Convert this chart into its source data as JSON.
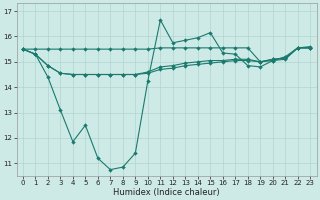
{
  "xlabel": "Humidex (Indice chaleur)",
  "xlim": [
    -0.5,
    23.5
  ],
  "ylim": [
    10.5,
    17.3
  ],
  "yticks": [
    11,
    12,
    13,
    14,
    15,
    16,
    17
  ],
  "xticks": [
    0,
    1,
    2,
    3,
    4,
    5,
    6,
    7,
    8,
    9,
    10,
    11,
    12,
    13,
    14,
    15,
    16,
    17,
    18,
    19,
    20,
    21,
    22,
    23
  ],
  "background_color": "#ceeae6",
  "grid_color": "#b0d4d0",
  "line_color": "#1a7a6e",
  "series": [
    [
      15.5,
      15.3,
      14.4,
      13.1,
      11.85,
      12.5,
      11.2,
      10.75,
      10.85,
      11.4,
      14.25,
      16.65,
      15.75,
      15.85,
      15.95,
      16.15,
      15.35,
      15.3,
      14.85,
      14.8,
      15.05,
      15.2,
      15.55,
      15.55
    ],
    [
      15.5,
      15.3,
      14.85,
      14.55,
      14.5,
      14.5,
      14.5,
      14.5,
      14.5,
      14.5,
      14.55,
      14.7,
      14.75,
      14.85,
      14.9,
      14.95,
      15.0,
      15.05,
      15.05,
      15.0,
      15.05,
      15.1,
      15.55,
      15.55
    ],
    [
      15.5,
      15.5,
      15.5,
      15.5,
      15.5,
      15.5,
      15.5,
      15.5,
      15.5,
      15.5,
      15.5,
      15.55,
      15.55,
      15.55,
      15.55,
      15.55,
      15.55,
      15.55,
      15.55,
      15.0,
      15.1,
      15.15,
      15.55,
      15.6
    ],
    [
      15.5,
      15.3,
      14.85,
      14.55,
      14.5,
      14.5,
      14.5,
      14.5,
      14.5,
      14.5,
      14.6,
      14.8,
      14.85,
      14.95,
      15.0,
      15.05,
      15.05,
      15.1,
      15.1,
      15.0,
      15.1,
      15.15,
      15.55,
      15.55
    ]
  ],
  "marker": "D",
  "markersize": 2.0,
  "linewidth": 0.8,
  "tick_fontsize": 5.0,
  "label_fontsize": 6.0
}
